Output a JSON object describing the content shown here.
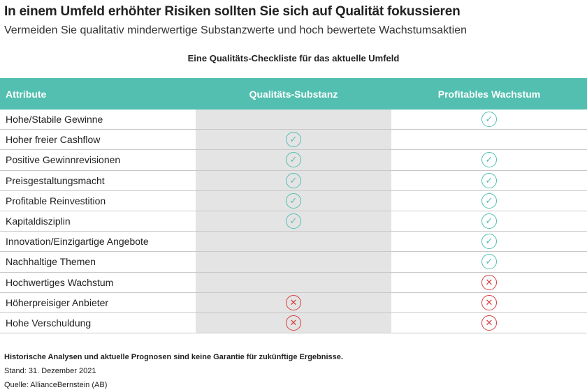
{
  "title": "In einem Umfeld erhöhter Risiken sollten Sie sich auf Qualität fokussieren",
  "subtitle": "Vermeiden Sie qualitativ minderwertige Substanzwerte und hoch bewertete Wachstumsaktien",
  "table_title": "Eine Qualitäts-Checkliste für das aktuelle Umfeld",
  "colors": {
    "header": "#52bfb0",
    "check": "#52bfb0",
    "cross": "#d43f3f",
    "shaded_column": "#e4e4e4"
  },
  "headers": [
    "Attribute",
    "Qualitäts-Substanz",
    "Profitables Wachstum"
  ],
  "rows": [
    {
      "attribute": "Hohe/Stabile Gewinne",
      "quality_value": "",
      "profitable_growth": "check"
    },
    {
      "attribute": "Hoher freier Cashflow",
      "quality_value": "check",
      "profitable_growth": ""
    },
    {
      "attribute": "Positive Gewinnrevisionen",
      "quality_value": "check",
      "profitable_growth": "check"
    },
    {
      "attribute": "Preisgestaltungsmacht",
      "quality_value": "check",
      "profitable_growth": "check"
    },
    {
      "attribute": "Profitable Reinvestition",
      "quality_value": "check",
      "profitable_growth": "check"
    },
    {
      "attribute": "Kapitaldisziplin",
      "quality_value": "check",
      "profitable_growth": "check"
    },
    {
      "attribute": "Innovation/Einzigartige Angebote",
      "quality_value": "",
      "profitable_growth": "check"
    },
    {
      "attribute": "Nachhaltige Themen",
      "quality_value": "",
      "profitable_growth": "check"
    },
    {
      "attribute": "Hochwertiges Wachstum",
      "quality_value": "",
      "profitable_growth": "cross"
    },
    {
      "attribute": "Höherpreisiger Anbieter",
      "quality_value": "cross",
      "profitable_growth": "cross"
    },
    {
      "attribute": "Hohe Verschuldung",
      "quality_value": "cross",
      "profitable_growth": "cross"
    }
  ],
  "footer": {
    "disclaimer": "Historische Analysen und aktuelle Prognosen sind keine Garantie für zukünftige Ergebnisse.",
    "date": "Stand: 31. Dezember 2021",
    "source": "Quelle: AllianceBernstein (AB)"
  }
}
